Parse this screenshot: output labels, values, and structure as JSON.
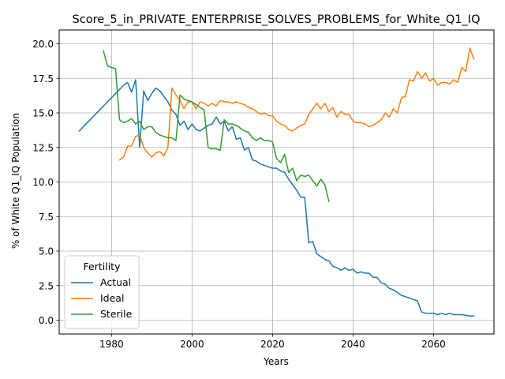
{
  "chart_data": {
    "type": "line",
    "title": "Score_5_in_PRIVATE_ENTERPRISE_SOLVES_PROBLEMS_for_White_Q1_IQ",
    "xlabel": "Years",
    "ylabel": "% of White Q1_IQ Population",
    "xlim": [
      1967,
      2075
    ],
    "ylim": [
      -1,
      21
    ],
    "xticks": [
      1980,
      2000,
      2020,
      2040,
      2060
    ],
    "yticks": [
      0.0,
      2.5,
      5.0,
      7.5,
      10.0,
      12.5,
      15.0,
      17.5,
      20.0
    ],
    "xtick_labels": [
      "1980",
      "2000",
      "2020",
      "2040",
      "2060"
    ],
    "ytick_labels": [
      "0.0",
      "2.5",
      "5.0",
      "7.5",
      "10.0",
      "12.5",
      "15.0",
      "17.5",
      "20.0"
    ],
    "grid": true,
    "legend": {
      "title": "Fertility",
      "position": "lower-left"
    },
    "series": [
      {
        "name": "Actual",
        "color": "#1f77b4",
        "x": [
          1972,
          1974,
          1976,
          1978,
          1980,
          1982,
          1983,
          1984,
          1985,
          1986,
          1987,
          1988,
          1989,
          1990,
          1991,
          1992,
          1993,
          1994,
          1995,
          1996,
          1997,
          1998,
          1999,
          2000,
          2001,
          2002,
          2003,
          2004,
          2005,
          2006,
          2007,
          2008,
          2009,
          2010,
          2011,
          2012,
          2013,
          2014,
          2015,
          2016,
          2017,
          2018,
          2019,
          2020,
          2021,
          2022,
          2023,
          2024,
          2025,
          2026,
          2027,
          2028,
          2029,
          2030,
          2031,
          2032,
          2033,
          2034,
          2035,
          2036,
          2037,
          2038,
          2039,
          2040,
          2041,
          2042,
          2043,
          2044,
          2045,
          2046,
          2047,
          2048,
          2049,
          2050,
          2051,
          2052,
          2053,
          2054,
          2055,
          2056,
          2057,
          2058,
          2059,
          2060,
          2061,
          2062,
          2063,
          2064,
          2065,
          2066,
          2067,
          2068,
          2069,
          2070
        ],
        "y": [
          13.7,
          14.3,
          14.9,
          15.5,
          16.1,
          16.7,
          17.0,
          17.2,
          16.5,
          17.4,
          12.5,
          16.6,
          15.9,
          16.4,
          16.8,
          16.6,
          16.2,
          15.8,
          15.2,
          14.9,
          14.1,
          14.4,
          13.8,
          14.2,
          13.8,
          13.7,
          13.9,
          14.1,
          14.2,
          14.7,
          14.2,
          14.4,
          13.7,
          14.0,
          13.1,
          13.2,
          12.3,
          12.5,
          11.6,
          11.5,
          11.3,
          11.2,
          11.1,
          11.0,
          11.0,
          10.8,
          10.7,
          10.2,
          9.8,
          9.4,
          8.9,
          8.9,
          5.6,
          5.7,
          4.8,
          4.6,
          4.4,
          4.3,
          3.9,
          3.8,
          3.6,
          3.8,
          3.6,
          3.7,
          3.4,
          3.5,
          3.4,
          3.4,
          3.1,
          3.1,
          2.7,
          2.6,
          2.3,
          2.2,
          2.0,
          1.8,
          1.7,
          1.6,
          1.5,
          1.4,
          0.6,
          0.5,
          0.5,
          0.5,
          0.4,
          0.5,
          0.4,
          0.5,
          0.4,
          0.4,
          0.4,
          0.35,
          0.3,
          0.3
        ]
      },
      {
        "name": "Ideal",
        "color": "#ff7f0e",
        "x": [
          1982,
          1983,
          1984,
          1985,
          1986,
          1987,
          1988,
          1989,
          1990,
          1991,
          1992,
          1993,
          1994,
          1995,
          1996,
          1997,
          1998,
          1999,
          2000,
          2001,
          2002,
          2003,
          2004,
          2005,
          2006,
          2007,
          2008,
          2009,
          2010,
          2011,
          2012,
          2013,
          2014,
          2015,
          2016,
          2017,
          2018,
          2019,
          2020,
          2021,
          2022,
          2023,
          2024,
          2025,
          2026,
          2027,
          2028,
          2029,
          2030,
          2031,
          2032,
          2033,
          2034,
          2035,
          2036,
          2037,
          2038,
          2039,
          2040,
          2041,
          2042,
          2043,
          2044,
          2045,
          2046,
          2047,
          2048,
          2049,
          2050,
          2051,
          2052,
          2053,
          2054,
          2055,
          2056,
          2057,
          2058,
          2059,
          2060,
          2061,
          2062,
          2063,
          2064,
          2065,
          2066,
          2067,
          2068,
          2069,
          2070
        ],
        "y": [
          11.6,
          11.8,
          12.6,
          12.6,
          13.3,
          13.4,
          12.5,
          12.1,
          11.8,
          12.1,
          12.2,
          11.9,
          12.5,
          16.8,
          16.3,
          15.9,
          15.3,
          15.8,
          15.8,
          15.3,
          15.8,
          15.7,
          15.5,
          15.7,
          15.5,
          15.9,
          15.8,
          15.8,
          15.7,
          15.8,
          15.7,
          15.6,
          15.4,
          15.3,
          15.1,
          14.9,
          15.0,
          14.8,
          14.8,
          14.4,
          14.2,
          14.1,
          13.8,
          13.7,
          13.9,
          14.1,
          14.2,
          14.9,
          15.3,
          15.7,
          15.3,
          15.7,
          15.1,
          15.4,
          14.7,
          15.1,
          14.9,
          14.9,
          14.4,
          14.3,
          14.3,
          14.2,
          14.0,
          14.1,
          14.3,
          14.5,
          15.0,
          14.7,
          15.3,
          15.0,
          16.1,
          16.2,
          17.4,
          17.3,
          18.0,
          17.5,
          17.9,
          17.3,
          17.5,
          17.0,
          17.2,
          17.2,
          17.1,
          17.4,
          17.2,
          18.3,
          18.0,
          19.7,
          18.9
        ]
      },
      {
        "name": "Sterile",
        "color": "#2ca02c",
        "x": [
          1978,
          1979,
          1980,
          1981,
          1982,
          1983,
          1984,
          1985,
          1986,
          1987,
          1988,
          1989,
          1990,
          1991,
          1992,
          1993,
          1994,
          1995,
          1996,
          1997,
          1998,
          1999,
          2000,
          2001,
          2002,
          2003,
          2004,
          2005,
          2006,
          2007,
          2008,
          2009,
          2010,
          2011,
          2012,
          2013,
          2014,
          2015,
          2016,
          2017,
          2018,
          2019,
          2020,
          2021,
          2022,
          2023,
          2024,
          2025,
          2026,
          2027,
          2028,
          2029,
          2030,
          2031,
          2032,
          2033,
          2034
        ],
        "y": [
          19.5,
          18.4,
          18.3,
          18.2,
          14.5,
          14.3,
          14.4,
          14.6,
          14.2,
          14.4,
          13.8,
          14.0,
          14.0,
          13.6,
          13.4,
          13.3,
          13.2,
          13.2,
          13.0,
          16.3,
          16.0,
          15.9,
          15.8,
          15.6,
          15.4,
          15.2,
          12.5,
          12.4,
          12.4,
          12.3,
          14.5,
          14.2,
          14.2,
          14.1,
          13.9,
          13.7,
          13.6,
          13.2,
          13.0,
          13.2,
          13.0,
          13.0,
          12.9,
          11.7,
          11.4,
          12.0,
          10.7,
          11.0,
          10.1,
          10.5,
          10.4,
          10.5,
          10.1,
          9.7,
          10.2,
          9.8,
          8.6
        ]
      }
    ]
  }
}
